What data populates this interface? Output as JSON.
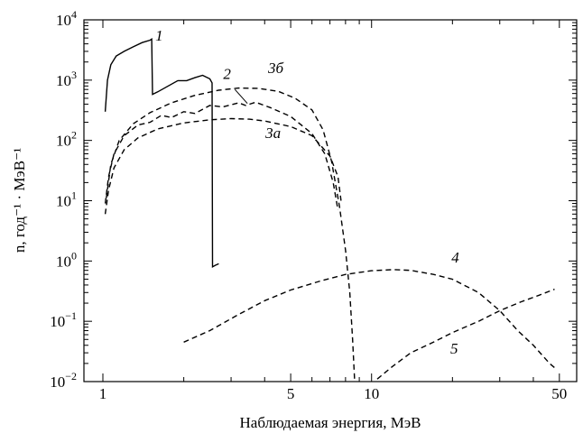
{
  "chart_data": {
    "type": "line",
    "xlabel": "Наблюдаемая энергия, МэВ",
    "ylabel": "n, год⁻¹ · МэВ⁻¹",
    "x_scale": "log",
    "y_scale": "log",
    "xlim": [
      0.85,
      58
    ],
    "ylim": [
      0.01,
      10000
    ],
    "x_ticks": [
      {
        "value": 1,
        "label": "1"
      },
      {
        "value": 5,
        "label": "5"
      },
      {
        "value": 10,
        "label": "10"
      },
      {
        "value": 50,
        "label": "50"
      }
    ],
    "y_ticks": [
      {
        "value": 0.01,
        "base": "10",
        "exp": "−2"
      },
      {
        "value": 0.1,
        "base": "10",
        "exp": "−1"
      },
      {
        "value": 1,
        "base": "10",
        "exp": "0"
      },
      {
        "value": 10,
        "base": "10",
        "exp": "1"
      },
      {
        "value": 100,
        "base": "10",
        "exp": "2"
      },
      {
        "value": 1000,
        "base": "10",
        "exp": "3"
      },
      {
        "value": 10000,
        "base": "10",
        "exp": "4"
      }
    ],
    "grid": false,
    "series": [
      {
        "name": "1",
        "style": "solid",
        "points": [
          [
            1.02,
            300
          ],
          [
            1.04,
            1000
          ],
          [
            1.07,
            1800
          ],
          [
            1.12,
            2500
          ],
          [
            1.2,
            3000
          ],
          [
            1.3,
            3600
          ],
          [
            1.4,
            4200
          ],
          [
            1.5,
            4600
          ],
          [
            1.52,
            4800
          ],
          [
            1.53,
            580
          ],
          [
            1.6,
            640
          ],
          [
            1.75,
            800
          ],
          [
            1.9,
            980
          ],
          [
            2.05,
            980
          ],
          [
            2.2,
            1100
          ],
          [
            2.35,
            1200
          ],
          [
            2.5,
            1050
          ],
          [
            2.55,
            900
          ],
          [
            2.56,
            0.8
          ],
          [
            2.62,
            0.85
          ],
          [
            2.7,
            0.9
          ]
        ],
        "label": {
          "text": "1",
          "x": 1.62,
          "y": 4500
        }
      },
      {
        "name": "2",
        "style": "dashed",
        "points": [
          [
            1.02,
            9
          ],
          [
            1.05,
            25
          ],
          [
            1.1,
            60
          ],
          [
            1.2,
            120
          ],
          [
            1.35,
            180
          ],
          [
            1.5,
            200
          ],
          [
            1.65,
            260
          ],
          [
            1.8,
            240
          ],
          [
            2.0,
            300
          ],
          [
            2.2,
            280
          ],
          [
            2.5,
            380
          ],
          [
            2.8,
            360
          ],
          [
            3.2,
            420
          ],
          [
            3.4,
            380
          ],
          [
            3.7,
            430
          ],
          [
            4.2,
            350
          ],
          [
            5.0,
            250
          ],
          [
            6.0,
            130
          ],
          [
            6.7,
            60
          ],
          [
            7.2,
            20
          ],
          [
            7.5,
            7
          ]
        ],
        "label": {
          "text": "2",
          "x": 2.9,
          "y": 1050
        }
      },
      {
        "name": "3а",
        "style": "dashed",
        "points": [
          [
            1.02,
            6
          ],
          [
            1.05,
            15
          ],
          [
            1.1,
            35
          ],
          [
            1.2,
            70
          ],
          [
            1.35,
            110
          ],
          [
            1.6,
            155
          ],
          [
            2.0,
            195
          ],
          [
            2.5,
            220
          ],
          [
            3.0,
            230
          ],
          [
            3.5,
            225
          ],
          [
            4.0,
            210
          ],
          [
            5.0,
            170
          ],
          [
            6.0,
            120
          ],
          [
            7.0,
            55
          ],
          [
            7.5,
            25
          ],
          [
            7.7,
            10
          ]
        ],
        "label": {
          "text": "3а",
          "x": 4.3,
          "y": 110
        }
      },
      {
        "name": "3б",
        "style": "dashed",
        "points": [
          [
            1.03,
            11
          ],
          [
            1.07,
            40
          ],
          [
            1.15,
            100
          ],
          [
            1.3,
            190
          ],
          [
            1.5,
            290
          ],
          [
            1.8,
            420
          ],
          [
            2.2,
            560
          ],
          [
            2.7,
            680
          ],
          [
            3.2,
            740
          ],
          [
            3.8,
            730
          ],
          [
            4.5,
            650
          ],
          [
            5.2,
            500
          ],
          [
            6.0,
            320
          ],
          [
            6.6,
            150
          ],
          [
            7.1,
            45
          ],
          [
            7.6,
            8
          ],
          [
            8.0,
            1.5
          ],
          [
            8.3,
            0.3
          ],
          [
            8.5,
            0.05
          ],
          [
            8.65,
            0.01
          ]
        ],
        "label": {
          "text": "3б",
          "x": 4.4,
          "y": 1300
        }
      },
      {
        "name": "4",
        "style": "dashed",
        "points": [
          [
            2.0,
            0.045
          ],
          [
            2.5,
            0.07
          ],
          [
            3.2,
            0.13
          ],
          [
            4.0,
            0.22
          ],
          [
            5.0,
            0.33
          ],
          [
            6.5,
            0.47
          ],
          [
            8.0,
            0.6
          ],
          [
            10.0,
            0.69
          ],
          [
            12.0,
            0.72
          ],
          [
            14.0,
            0.7
          ],
          [
            17.0,
            0.6
          ],
          [
            20.0,
            0.5
          ],
          [
            25.0,
            0.3
          ],
          [
            30.0,
            0.15
          ],
          [
            35.0,
            0.07
          ],
          [
            40.0,
            0.04
          ],
          [
            46.0,
            0.02
          ],
          [
            48.0,
            0.017
          ]
        ],
        "label": {
          "text": "4",
          "x": 20.5,
          "y": 0.95
        }
      },
      {
        "name": "5",
        "style": "dashed",
        "points": [
          [
            10.5,
            0.011
          ],
          [
            12.0,
            0.018
          ],
          [
            14.0,
            0.03
          ],
          [
            17.0,
            0.045
          ],
          [
            20.0,
            0.065
          ],
          [
            25.0,
            0.1
          ],
          [
            30.0,
            0.15
          ],
          [
            36.0,
            0.21
          ],
          [
            42.0,
            0.27
          ],
          [
            48.0,
            0.34
          ]
        ],
        "label": {
          "text": "5",
          "x": 20.3,
          "y": 0.029
        }
      }
    ],
    "pointers": [
      {
        "from": [
          3.1,
          700
        ],
        "to": [
          3.45,
          410
        ]
      }
    ]
  }
}
